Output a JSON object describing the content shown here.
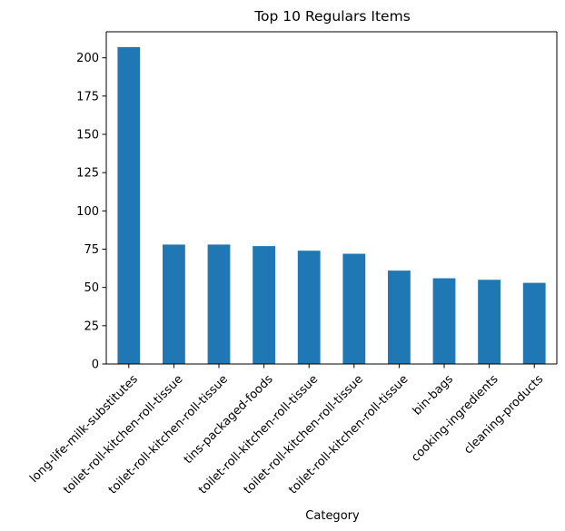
{
  "chart_data": {
    "type": "bar",
    "title": "Top 10 Regulars Items",
    "xlabel": "Category",
    "ylabel": "",
    "categories": [
      "long-life-milk-substitutes",
      "toilet-roll-kitchen-roll-tissue",
      "toilet-roll-kitchen-roll-tissue",
      "tins-packaged-foods",
      "toilet-roll-kitchen-roll-tissue",
      "toilet-roll-kitchen-roll-tissue",
      "toilet-roll-kitchen-roll-tissue",
      "bin-bags",
      "cooking-ingredients",
      "cleaning-products"
    ],
    "values": [
      207,
      78,
      78,
      77,
      74,
      72,
      61,
      56,
      55,
      53
    ],
    "ylim": [
      0,
      217
    ],
    "yticks": [
      0,
      25,
      50,
      75,
      100,
      125,
      150,
      175,
      200
    ],
    "bar_color": "#1f77b4",
    "grid": false,
    "legend": "none"
  }
}
